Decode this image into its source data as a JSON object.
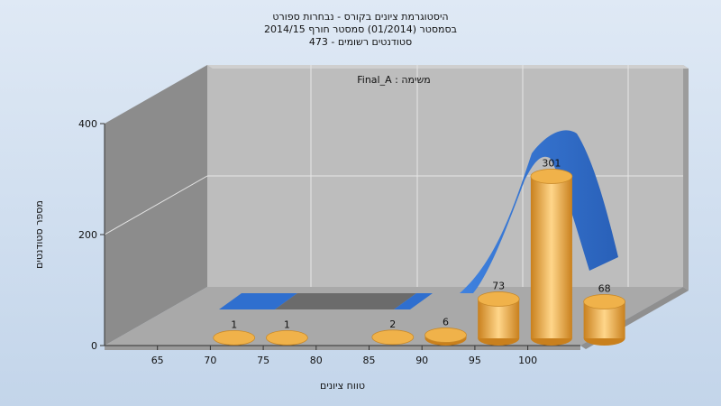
{
  "chart_data": {
    "type": "bar",
    "title_lines": [
      "היסטוגרמת ציונים בקורס - נבחרות ספורט",
      "בסמסטר  (01/2014)  סמסטר חורף 2014/15",
      "סטודנטים רשומים - 473"
    ],
    "annotation": "משימה : Final_A",
    "xlabel": "טווח ציונים",
    "ylabel": "מספר סטודנטים",
    "ylim": [
      0,
      400
    ],
    "y_ticks": [
      "0",
      "200",
      "400"
    ],
    "x_ticks": [
      "65",
      "70",
      "75",
      "80",
      "85",
      "90",
      "95",
      "100"
    ],
    "categories": [
      "65",
      "70",
      "80",
      "85",
      "90",
      "95",
      "100"
    ],
    "values": [
      1,
      1,
      2,
      6,
      73,
      301,
      68
    ],
    "data_labels": [
      "1",
      "1",
      "2",
      "6",
      "73",
      "301",
      "68"
    ],
    "bar_color": "#e7a53c",
    "curve_color": "#2f6fcf",
    "grid": true
  }
}
